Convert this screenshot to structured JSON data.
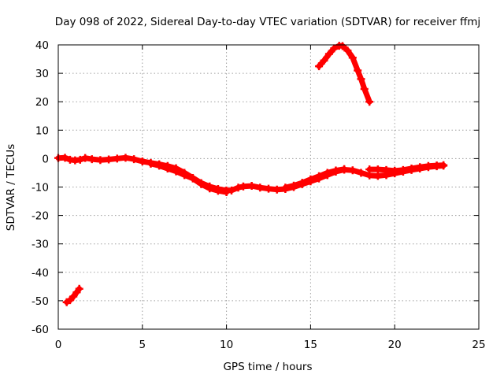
{
  "chart_data": {
    "type": "scatter",
    "title": "Day 098 of 2022, Sidereal Day-to-day VTEC variation (SDTVAR) for receiver ffmj",
    "xlabel": "GPS time / hours",
    "ylabel": "SDTVAR / TECUs",
    "xlim": [
      0,
      25
    ],
    "ylim": [
      -60,
      40
    ],
    "x_ticks": [
      "0",
      "5",
      "10",
      "15",
      "20",
      "25"
    ],
    "y_ticks": [
      "-60",
      "-50",
      "-40",
      "-30",
      "-20",
      "-10",
      "0",
      "10",
      "20",
      "30",
      "40"
    ],
    "grid": true,
    "marker": "plus",
    "color": "#ff0000",
    "series": [
      {
        "name": "early-negative-branch",
        "points": [
          [
            0.5,
            -50.5
          ],
          [
            0.7,
            -49.8
          ],
          [
            0.9,
            -48.5
          ],
          [
            1.1,
            -47.0
          ],
          [
            1.25,
            -45.8
          ]
        ]
      },
      {
        "name": "main-band",
        "points": [
          [
            0.0,
            0.2
          ],
          [
            0.4,
            0.3
          ],
          [
            0.7,
            -0.4
          ],
          [
            1.0,
            -0.6
          ],
          [
            1.3,
            -0.4
          ],
          [
            1.6,
            0.2
          ],
          [
            2.0,
            -0.2
          ],
          [
            2.5,
            -0.5
          ],
          [
            3.0,
            -0.3
          ],
          [
            3.5,
            0.0
          ],
          [
            4.0,
            0.3
          ],
          [
            4.5,
            -0.2
          ],
          [
            5.0,
            -1.0
          ],
          [
            5.5,
            -1.5
          ],
          [
            6.0,
            -2.0
          ],
          [
            6.5,
            -2.6
          ],
          [
            7.0,
            -3.4
          ],
          [
            7.5,
            -5.0
          ],
          [
            8.0,
            -6.8
          ],
          [
            8.5,
            -8.6
          ],
          [
            9.0,
            -9.8
          ],
          [
            9.5,
            -10.7
          ],
          [
            10.0,
            -11.2
          ],
          [
            10.3,
            -11.2
          ],
          [
            10.7,
            -10.2
          ],
          [
            11.0,
            -9.8
          ],
          [
            11.5,
            -9.6
          ],
          [
            12.0,
            -10.2
          ],
          [
            12.5,
            -10.6
          ],
          [
            13.0,
            -10.9
          ],
          [
            13.5,
            -10.7
          ],
          [
            14.0,
            -10.0
          ],
          [
            14.5,
            -9.0
          ],
          [
            15.0,
            -8.0
          ],
          [
            15.5,
            -7.0
          ],
          [
            16.0,
            -5.8
          ],
          [
            16.5,
            -4.6
          ],
          [
            17.0,
            -3.9
          ],
          [
            17.5,
            -4.1
          ],
          [
            18.0,
            -5.0
          ],
          [
            18.5,
            -5.9
          ],
          [
            19.0,
            -6.1
          ],
          [
            19.5,
            -5.8
          ],
          [
            20.0,
            -5.2
          ],
          [
            20.5,
            -4.6
          ],
          [
            21.0,
            -4.0
          ],
          [
            21.5,
            -3.5
          ],
          [
            22.0,
            -3.0
          ],
          [
            22.5,
            -2.7
          ],
          [
            22.9,
            -2.5
          ]
        ]
      },
      {
        "name": "secondary-band",
        "points": [
          [
            5.5,
            -1.8
          ],
          [
            6.0,
            -2.5
          ],
          [
            6.5,
            -3.5
          ],
          [
            7.0,
            -4.5
          ],
          [
            7.5,
            -5.8
          ],
          [
            8.0,
            -7.0
          ],
          [
            8.5,
            -9.0
          ],
          [
            9.0,
            -10.5
          ],
          [
            9.5,
            -11.3
          ],
          [
            10.0,
            -11.8
          ]
        ]
      },
      {
        "name": "late-band",
        "points": [
          [
            13.5,
            -10.2
          ],
          [
            14.0,
            -9.5
          ],
          [
            14.5,
            -8.5
          ],
          [
            15.0,
            -7.3
          ],
          [
            15.5,
            -6.2
          ],
          [
            16.0,
            -5.0
          ],
          [
            16.5,
            -4.2
          ],
          [
            17.0,
            -3.7
          ]
        ]
      },
      {
        "name": "evening-band",
        "points": [
          [
            18.5,
            -3.8
          ],
          [
            19.0,
            -3.8
          ],
          [
            19.5,
            -4.0
          ],
          [
            20.0,
            -4.3
          ],
          [
            20.5,
            -4.0
          ],
          [
            21.0,
            -3.5
          ],
          [
            21.5,
            -3.0
          ],
          [
            22.0,
            -2.6
          ],
          [
            22.5,
            -2.4
          ],
          [
            22.9,
            -2.3
          ]
        ]
      },
      {
        "name": "positive-arc",
        "points": [
          [
            15.5,
            32.5
          ],
          [
            15.8,
            34.5
          ],
          [
            16.1,
            36.8
          ],
          [
            16.4,
            38.8
          ],
          [
            16.7,
            39.7
          ],
          [
            16.9,
            39.6
          ],
          [
            17.2,
            38.0
          ],
          [
            17.5,
            35.5
          ],
          [
            17.8,
            31.0
          ],
          [
            18.0,
            28.0
          ],
          [
            18.2,
            24.5
          ],
          [
            18.5,
            20.0
          ]
        ]
      }
    ]
  }
}
